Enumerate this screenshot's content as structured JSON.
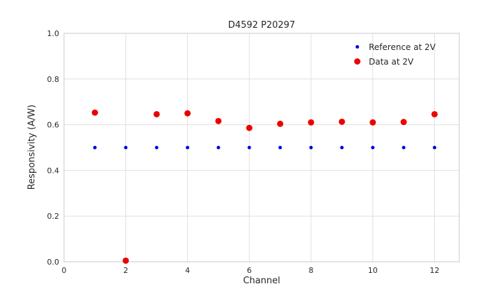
{
  "figure": {
    "title": "D4592 P20297",
    "xlabel": "Channel",
    "ylabel": "Responsivity (A/W)"
  },
  "chart_data": {
    "type": "scatter",
    "title": "D4592 P20297",
    "xlabel": "Channel",
    "ylabel": "Responsivity (A/W)",
    "xlim": [
      0,
      12.8
    ],
    "ylim": [
      0.0,
      1.0
    ],
    "x_ticks": [
      0,
      2,
      4,
      6,
      8,
      10,
      12
    ],
    "x_tick_labels": [
      "0",
      "2",
      "4",
      "6",
      "8",
      "10",
      "12"
    ],
    "y_ticks": [
      0.0,
      0.2,
      0.4,
      0.6,
      0.8,
      1.0
    ],
    "y_tick_labels": [
      "0.0",
      "0.2",
      "0.4",
      "0.6",
      "0.8",
      "1.0"
    ],
    "grid": true,
    "grid_color": "#e0e0e0",
    "border_color": "#c8c8c8",
    "text_color": "#262626",
    "legend_position": "upper right",
    "x": [
      1,
      2,
      3,
      4,
      5,
      6,
      7,
      8,
      9,
      10,
      11,
      12
    ],
    "series": [
      {
        "name": "Reference at 2V",
        "color": "#0000dd",
        "marker_size": 2.5,
        "values": [
          0.5,
          0.5,
          0.5,
          0.5,
          0.5,
          0.5,
          0.5,
          0.5,
          0.5,
          0.5,
          0.5,
          0.5
        ]
      },
      {
        "name": "Data at 2V",
        "color": "#ee0000",
        "marker_size": 4.5,
        "values": [
          0.653,
          0.005,
          0.646,
          0.65,
          0.616,
          0.586,
          0.604,
          0.61,
          0.613,
          0.61,
          0.612,
          0.646
        ]
      }
    ]
  }
}
